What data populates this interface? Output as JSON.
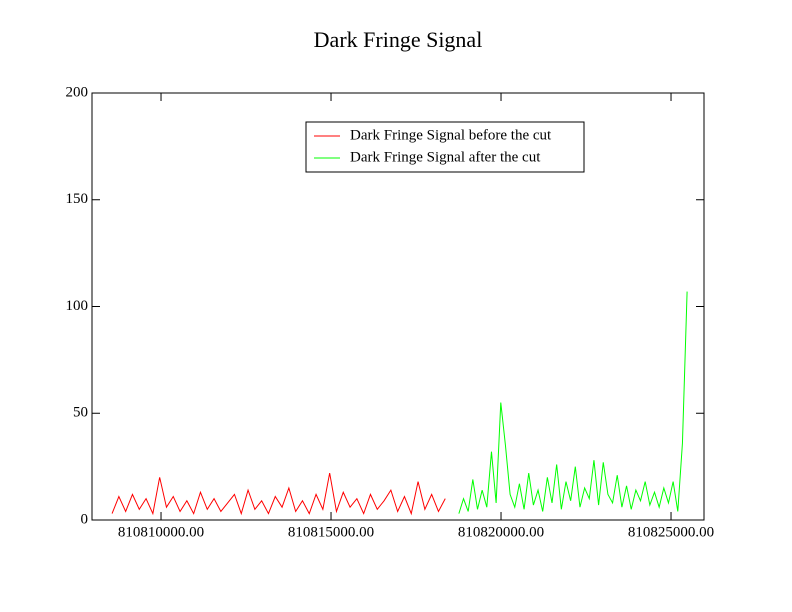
{
  "chart_data": {
    "type": "line",
    "title": "Dark Fringe Signal",
    "xlim": [
      810807970,
      810825970
    ],
    "xticks": [
      {
        "value": 810810000,
        "label": "810810000.00"
      },
      {
        "value": 810815000,
        "label": "810815000.00"
      },
      {
        "value": 810820000,
        "label": "810820000.00"
      },
      {
        "value": 810825000,
        "label": "810825000.00"
      }
    ],
    "ylim": [
      0,
      200
    ],
    "yticks": [
      0,
      50,
      100,
      150,
      200
    ],
    "grid": false,
    "legend": "upper-center",
    "series": [
      {
        "name": "Dark Fringe Signal before the cut",
        "color": "#ff0000",
        "x": [
          810808560,
          810808760,
          810808960,
          810809160,
          810809360,
          810809560,
          810809760,
          810809960,
          810810160,
          810810360,
          810810560,
          810810760,
          810810960,
          810811160,
          810811360,
          810811560,
          810811760,
          810811960,
          810812160,
          810812360,
          810812560,
          810812760,
          810812960,
          810813160,
          810813360,
          810813560,
          810813760,
          810813960,
          810814160,
          810814360,
          810814560,
          810814760,
          810814960,
          810815160,
          810815360,
          810815560,
          810815760,
          810815960,
          810816160,
          810816360,
          810816560,
          810816760,
          810816960,
          810817160,
          810817360,
          810817560,
          810817760,
          810817960,
          810818160,
          810818360
        ],
        "values": [
          3,
          11,
          4,
          12,
          5,
          10,
          3,
          20,
          6,
          11,
          4,
          9,
          3,
          13,
          5,
          10,
          4,
          8,
          12,
          3,
          14,
          5,
          9,
          3,
          11,
          6,
          15,
          4,
          9,
          3,
          12,
          5,
          22,
          4,
          13,
          6,
          10,
          3,
          12,
          5,
          9,
          14,
          4,
          11,
          3,
          18,
          5,
          12,
          4,
          10
        ]
      },
      {
        "name": "Dark Fringe Signal after the cut",
        "color": "#00ff00",
        "x": [
          810818760,
          810818897,
          810819034,
          810819171,
          810819308,
          810819445,
          810819582,
          810819719,
          810819856,
          810819993,
          810820130,
          810820267,
          810820404,
          810820541,
          810820678,
          810820815,
          810820952,
          810821089,
          810821226,
          810821363,
          810821500,
          810821637,
          810821774,
          810821911,
          810822048,
          810822185,
          810822322,
          810822459,
          810822596,
          810822733,
          810822870,
          810823007,
          810823144,
          810823281,
          810823418,
          810823555,
          810823692,
          810823829,
          810823966,
          810824103,
          810824240,
          810824377,
          810824514,
          810824651,
          810824788,
          810824925,
          810825062,
          810825199,
          810825336,
          810825473
        ],
        "values": [
          3,
          10,
          4,
          19,
          5,
          14,
          6,
          32,
          8,
          55,
          35,
          12,
          6,
          17,
          5,
          22,
          7,
          14,
          4,
          20,
          8,
          26,
          5,
          18,
          9,
          25,
          6,
          15,
          10,
          28,
          7,
          27,
          12,
          8,
          21,
          6,
          16,
          5,
          14,
          9,
          18,
          7,
          13,
          6,
          15,
          8,
          18,
          4,
          36,
          107
        ]
      }
    ]
  }
}
